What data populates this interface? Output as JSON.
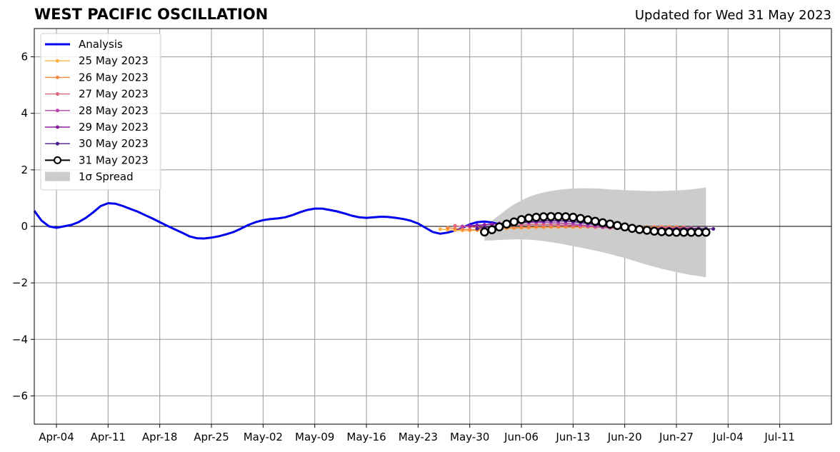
{
  "title": "WEST PACIFIC OSCILLATION",
  "subtitle": "Updated for Wed 31 May 2023",
  "chart_data": {
    "type": "line",
    "title": "WEST PACIFIC OSCILLATION",
    "subtitle": "Updated for Wed 31 May 2023",
    "xlabel": "",
    "ylabel": "",
    "x_unit": "date",
    "xlim": [
      "2023-04-01",
      "2023-07-18"
    ],
    "ylim": [
      -7,
      7
    ],
    "grid": true,
    "legend_position": "top-left",
    "x_ticks": [
      {
        "date": "2023-04-04",
        "label": "Apr-04"
      },
      {
        "date": "2023-04-11",
        "label": "Apr-11"
      },
      {
        "date": "2023-04-18",
        "label": "Apr-18"
      },
      {
        "date": "2023-04-25",
        "label": "Apr-25"
      },
      {
        "date": "2023-05-02",
        "label": "May-02"
      },
      {
        "date": "2023-05-09",
        "label": "May-09"
      },
      {
        "date": "2023-05-16",
        "label": "May-16"
      },
      {
        "date": "2023-05-23",
        "label": "May-23"
      },
      {
        "date": "2023-05-30",
        "label": "May-30"
      },
      {
        "date": "2023-06-06",
        "label": "Jun-06"
      },
      {
        "date": "2023-06-13",
        "label": "Jun-13"
      },
      {
        "date": "2023-06-20",
        "label": "Jun-20"
      },
      {
        "date": "2023-06-27",
        "label": "Jun-27"
      },
      {
        "date": "2023-07-04",
        "label": "Jul-04"
      },
      {
        "date": "2023-07-11",
        "label": "Jul-11"
      }
    ],
    "y_ticks": [
      {
        "value": 6,
        "label": "6"
      },
      {
        "value": 4,
        "label": "4"
      },
      {
        "value": 2,
        "label": "2"
      },
      {
        "value": 0,
        "label": "0"
      },
      {
        "value": -2,
        "label": "−2"
      },
      {
        "value": -4,
        "label": "−4"
      },
      {
        "value": -6,
        "label": "−6"
      }
    ],
    "analysis": {
      "name": "Analysis",
      "color": "#0000ee",
      "start_date": "2023-04-01",
      "values": [
        0.55,
        0.2,
        0.0,
        -0.05,
        0.0,
        0.05,
        0.15,
        0.3,
        0.5,
        0.72,
        0.82,
        0.8,
        0.72,
        0.62,
        0.52,
        0.4,
        0.28,
        0.15,
        0.02,
        -0.1,
        -0.22,
        -0.35,
        -0.42,
        -0.43,
        -0.4,
        -0.35,
        -0.28,
        -0.2,
        -0.08,
        0.05,
        0.15,
        0.22,
        0.26,
        0.28,
        0.32,
        0.4,
        0.5,
        0.58,
        0.63,
        0.63,
        0.58,
        0.53,
        0.46,
        0.38,
        0.32,
        0.3,
        0.32,
        0.34,
        0.33,
        0.3,
        0.26,
        0.2,
        0.1,
        -0.05,
        -0.2,
        -0.26,
        -0.22,
        -0.15,
        -0.05,
        0.07,
        0.15,
        0.17,
        0.14,
        0.07,
        0.02
      ]
    },
    "forecasts": [
      {
        "name": "25 May 2023",
        "color": "#ffb347",
        "start_date": "2023-05-26",
        "values": [
          -0.1,
          -0.12,
          -0.14,
          -0.15,
          -0.15,
          -0.14,
          -0.12,
          -0.1,
          -0.08,
          -0.07,
          -0.06,
          -0.05,
          -0.05,
          -0.04,
          -0.04,
          -0.03,
          -0.03,
          -0.03,
          -0.03,
          -0.03,
          -0.02,
          -0.02,
          -0.02,
          -0.02,
          -0.02,
          -0.02,
          -0.02,
          -0.02,
          -0.02,
          -0.02,
          -0.02,
          -0.02,
          -0.02
        ]
      },
      {
        "name": "26 May 2023",
        "color": "#f5873f",
        "start_date": "2023-05-27",
        "values": [
          -0.05,
          -0.08,
          -0.1,
          -0.12,
          -0.12,
          -0.11,
          -0.1,
          -0.08,
          -0.06,
          -0.05,
          -0.04,
          -0.03,
          -0.02,
          -0.02,
          -0.02,
          -0.02,
          -0.02,
          -0.02,
          -0.02,
          -0.02,
          -0.03,
          -0.03,
          -0.03,
          -0.03,
          -0.03,
          -0.03,
          -0.03,
          -0.03,
          -0.03,
          -0.03,
          -0.03,
          -0.03,
          -0.03
        ]
      },
      {
        "name": "27 May 2023",
        "color": "#e06680",
        "start_date": "2023-05-28",
        "values": [
          0.02,
          0.0,
          -0.02,
          -0.03,
          -0.03,
          -0.02,
          0.0,
          0.02,
          0.04,
          0.05,
          0.06,
          0.06,
          0.06,
          0.06,
          0.05,
          0.04,
          0.03,
          0.02,
          0.0,
          -0.02,
          -0.04,
          -0.06,
          -0.07,
          -0.08,
          -0.08,
          -0.07,
          -0.06,
          -0.05,
          -0.05,
          -0.05,
          -0.05,
          -0.05,
          -0.05
        ]
      },
      {
        "name": "28 May 2023",
        "color": "#b544a8",
        "start_date": "2023-05-29",
        "values": [
          0.0,
          0.02,
          0.03,
          0.05,
          0.07,
          0.09,
          0.1,
          0.12,
          0.13,
          0.14,
          0.14,
          0.14,
          0.13,
          0.12,
          0.1,
          0.08,
          0.05,
          0.02,
          0.0,
          -0.02,
          -0.04,
          -0.05,
          -0.06,
          -0.07,
          -0.07,
          -0.07,
          -0.07,
          -0.07,
          -0.07,
          -0.07,
          -0.07,
          -0.07,
          -0.07
        ]
      },
      {
        "name": "29 May 2023",
        "color": "#8a1fa2",
        "start_date": "2023-05-30",
        "values": [
          0.02,
          0.04,
          0.06,
          0.08,
          0.1,
          0.12,
          0.14,
          0.16,
          0.17,
          0.18,
          0.19,
          0.2,
          0.2,
          0.19,
          0.17,
          0.14,
          0.1,
          0.06,
          0.02,
          -0.02,
          -0.05,
          -0.07,
          -0.08,
          -0.08,
          -0.08,
          -0.08,
          -0.08,
          -0.08,
          -0.08,
          -0.08,
          -0.08,
          -0.08,
          -0.08
        ]
      },
      {
        "name": "30 May 2023",
        "color": "#4b1a8a",
        "start_date": "2023-05-31",
        "values": [
          -0.08,
          -0.04,
          0.0,
          0.04,
          0.08,
          0.11,
          0.14,
          0.16,
          0.18,
          0.19,
          0.2,
          0.2,
          0.19,
          0.17,
          0.14,
          0.1,
          0.06,
          0.02,
          -0.02,
          -0.05,
          -0.07,
          -0.08,
          -0.09,
          -0.09,
          -0.09,
          -0.09,
          -0.09,
          -0.09,
          -0.09,
          -0.09,
          -0.09,
          -0.09,
          -0.09
        ]
      },
      {
        "name": "31 May 2023",
        "color": "#000000",
        "start_date": "2023-06-01",
        "values": [
          -0.2,
          -0.12,
          -0.02,
          0.08,
          0.16,
          0.24,
          0.29,
          0.32,
          0.34,
          0.35,
          0.35,
          0.34,
          0.32,
          0.28,
          0.23,
          0.18,
          0.13,
          0.08,
          0.03,
          -0.02,
          -0.07,
          -0.11,
          -0.14,
          -0.17,
          -0.19,
          -0.2,
          -0.21,
          -0.21,
          -0.21,
          -0.21,
          -0.21
        ]
      }
    ],
    "spread": {
      "name": "1σ Spread",
      "color": "#cccccc",
      "start_date": "2023-06-01",
      "upper": [
        -0.05,
        0.2,
        0.4,
        0.6,
        0.78,
        0.92,
        1.04,
        1.13,
        1.2,
        1.25,
        1.29,
        1.32,
        1.34,
        1.35,
        1.35,
        1.34,
        1.33,
        1.31,
        1.3,
        1.28,
        1.27,
        1.26,
        1.25,
        1.25,
        1.25,
        1.26,
        1.27,
        1.29,
        1.31,
        1.34,
        1.38
      ],
      "lower": [
        -0.5,
        -0.5,
        -0.48,
        -0.47,
        -0.46,
        -0.46,
        -0.47,
        -0.49,
        -0.52,
        -0.56,
        -0.6,
        -0.65,
        -0.7,
        -0.75,
        -0.8,
        -0.86,
        -0.92,
        -0.98,
        -1.05,
        -1.12,
        -1.2,
        -1.28,
        -1.36,
        -1.43,
        -1.5,
        -1.56,
        -1.62,
        -1.67,
        -1.72,
        -1.76,
        -1.8
      ]
    }
  }
}
